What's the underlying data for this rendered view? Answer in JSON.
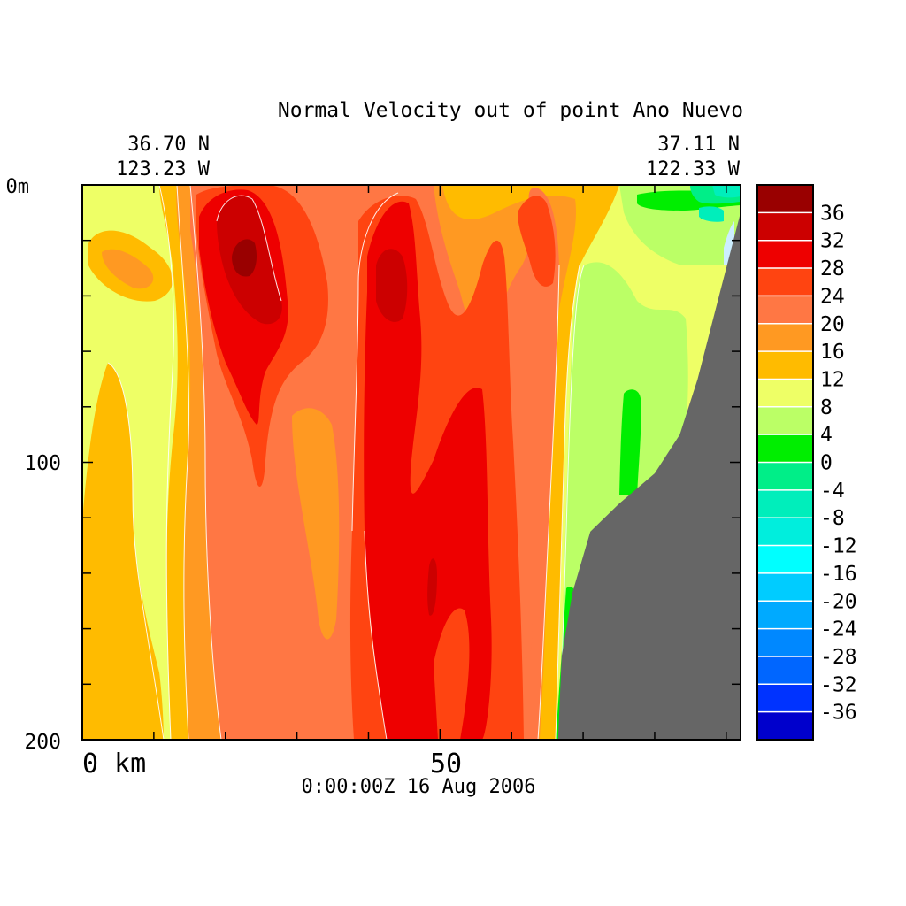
{
  "chart_data": {
    "type": "heatmap",
    "title": "Normal Velocity out of point Ano Nuevo",
    "start_location": {
      "lat": "36.70 N",
      "lon": "123.23 W"
    },
    "end_location": {
      "lat": "37.11 N",
      "lon": "122.33 W"
    },
    "timestamp": "0:00:00Z  16 Aug 2006",
    "x_axis": {
      "ticks": [
        "0 km",
        "50"
      ],
      "range_km": [
        0,
        92
      ]
    },
    "y_axis": {
      "ticks": [
        "0m",
        "100",
        "200"
      ],
      "range_m": [
        0,
        200
      ],
      "inverted": true
    },
    "colorbar": {
      "levels": [
        40,
        36,
        32,
        28,
        24,
        20,
        16,
        12,
        8,
        4,
        0,
        -4,
        -8,
        -12,
        -16,
        -20,
        -24,
        -28,
        -32,
        -36,
        -40
      ],
      "labels": [
        "36",
        "32",
        "28",
        "24",
        "20",
        "16",
        "12",
        "8",
        "4",
        "0",
        "-4",
        "-8",
        "-12",
        "-16",
        "-20",
        "-24",
        "-28",
        "-32",
        "-36"
      ],
      "colors": [
        "#990000",
        "#cc0000",
        "#ee0000",
        "#ff4411",
        "#ff7744",
        "#ff9922",
        "#ffbb00",
        "#eeff66",
        "#bbff66",
        "#00ee00",
        "#00ee88",
        "#00eebb",
        "#00eedd",
        "#00ffff",
        "#00ccff",
        "#00aaff",
        "#0088ff",
        "#0066ff",
        "#0033ff",
        "#0000cc"
      ]
    },
    "bathymetry": [
      {
        "km": 66.5,
        "depth": 200
      },
      {
        "km": 67,
        "depth": 170
      },
      {
        "km": 68.5,
        "depth": 147
      },
      {
        "km": 71,
        "depth": 125
      },
      {
        "km": 75,
        "depth": 115
      },
      {
        "km": 80,
        "depth": 104
      },
      {
        "km": 83.5,
        "depth": 90
      },
      {
        "km": 86,
        "depth": 70
      },
      {
        "km": 89,
        "depth": 40
      },
      {
        "km": 90.5,
        "depth": 25
      },
      {
        "km": 92,
        "depth": 10
      }
    ],
    "land_color": "#666666",
    "columns_velocity": [
      {
        "km": 0,
        "profile": [
          10,
          12,
          12,
          13,
          14,
          14
        ]
      },
      {
        "km": 4,
        "profile": [
          10,
          17,
          12,
          14,
          15,
          15
        ]
      },
      {
        "km": 8,
        "profile": [
          10,
          14,
          12,
          11,
          10,
          10
        ]
      },
      {
        "km": 14,
        "profile": [
          14,
          22,
          16,
          14,
          14,
          14
        ]
      },
      {
        "km": 18,
        "profile": [
          30,
          34,
          30,
          22,
          20,
          20
        ]
      },
      {
        "km": 24,
        "profile": [
          26,
          28,
          26,
          24,
          22,
          22
        ]
      },
      {
        "km": 30,
        "profile": [
          22,
          22,
          20,
          18,
          18,
          20
        ]
      },
      {
        "km": 38,
        "profile": [
          28,
          34,
          30,
          28,
          29,
          30
        ]
      },
      {
        "km": 46,
        "profile": [
          22,
          28,
          29,
          30,
          29,
          26
        ]
      },
      {
        "km": 52,
        "profile": [
          20,
          24,
          24,
          22,
          20,
          20
        ]
      },
      {
        "km": 60,
        "profile": [
          18,
          14,
          12,
          10,
          8,
          4
        ]
      },
      {
        "km": 72,
        "profile": [
          6,
          9,
          10,
          6,
          3,
          0
        ]
      }
    ]
  }
}
